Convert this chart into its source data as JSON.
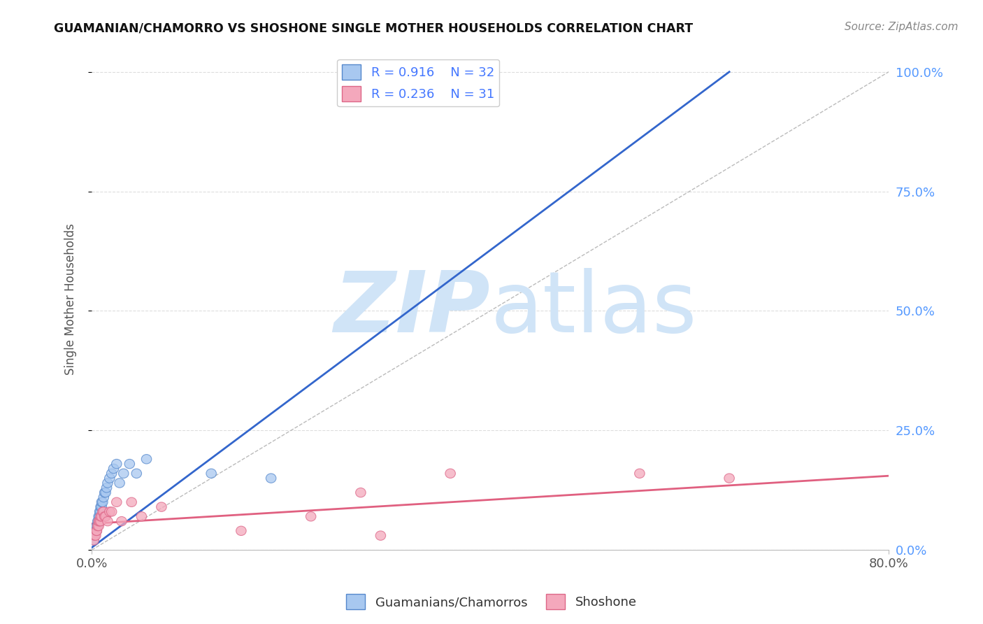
{
  "title": "GUAMANIAN/CHAMORRO VS SHOSHONE SINGLE MOTHER HOUSEHOLDS CORRELATION CHART",
  "source": "Source: ZipAtlas.com",
  "ylabel": "Single Mother Households",
  "legend_label1": "Guamanians/Chamorros",
  "legend_label2": "Shoshone",
  "R1": "0.916",
  "N1": "32",
  "R2": "0.236",
  "N2": "31",
  "color_blue": "#A8C8F0",
  "color_pink": "#F4A8BC",
  "color_blue_line": "#3366CC",
  "color_pink_line": "#E06080",
  "color_blue_edge": "#5588CC",
  "color_pink_edge": "#DD6688",
  "watermark_color": "#D0E4F7",
  "background_color": "#FFFFFF",
  "grid_color": "#DDDDDD",
  "blue_scatter_x": [
    0.002,
    0.003,
    0.004,
    0.005,
    0.005,
    0.006,
    0.006,
    0.007,
    0.007,
    0.008,
    0.008,
    0.009,
    0.009,
    0.01,
    0.01,
    0.011,
    0.012,
    0.013,
    0.014,
    0.015,
    0.016,
    0.018,
    0.02,
    0.022,
    0.025,
    0.028,
    0.032,
    0.038,
    0.045,
    0.055,
    0.12,
    0.18
  ],
  "blue_scatter_y": [
    0.02,
    0.03,
    0.04,
    0.04,
    0.05,
    0.05,
    0.06,
    0.06,
    0.07,
    0.07,
    0.08,
    0.08,
    0.09,
    0.09,
    0.1,
    0.1,
    0.11,
    0.12,
    0.12,
    0.13,
    0.14,
    0.15,
    0.16,
    0.17,
    0.18,
    0.14,
    0.16,
    0.18,
    0.16,
    0.19,
    0.16,
    0.15
  ],
  "pink_scatter_x": [
    0.002,
    0.003,
    0.004,
    0.005,
    0.005,
    0.006,
    0.007,
    0.007,
    0.008,
    0.009,
    0.009,
    0.01,
    0.011,
    0.012,
    0.013,
    0.014,
    0.016,
    0.018,
    0.02,
    0.025,
    0.03,
    0.04,
    0.05,
    0.07,
    0.15,
    0.22,
    0.27,
    0.36,
    0.55,
    0.64,
    0.29
  ],
  "pink_scatter_y": [
    0.02,
    0.03,
    0.03,
    0.04,
    0.04,
    0.05,
    0.05,
    0.06,
    0.06,
    0.06,
    0.07,
    0.07,
    0.08,
    0.08,
    0.07,
    0.07,
    0.06,
    0.08,
    0.08,
    0.1,
    0.06,
    0.1,
    0.07,
    0.09,
    0.04,
    0.07,
    0.12,
    0.16,
    0.16,
    0.15,
    0.03
  ],
  "blue_line_x": [
    0.0,
    0.64
  ],
  "blue_line_y": [
    0.005,
    1.0
  ],
  "pink_line_x": [
    0.0,
    0.8
  ],
  "pink_line_y": [
    0.055,
    0.155
  ],
  "diag_line_x": [
    0.0,
    0.8
  ],
  "diag_line_y": [
    0.0,
    1.0
  ],
  "xlim": [
    0.0,
    0.8
  ],
  "ylim": [
    0.0,
    1.05
  ],
  "x_ticks": [
    0.0,
    0.8
  ],
  "x_tick_labels": [
    "0.0%",
    "80.0%"
  ],
  "y_ticks": [
    0.0,
    0.25,
    0.5,
    0.75,
    1.0
  ],
  "y_tick_labels_right": [
    "0.0%",
    "25.0%",
    "50.0%",
    "75.0%",
    "100.0%"
  ]
}
